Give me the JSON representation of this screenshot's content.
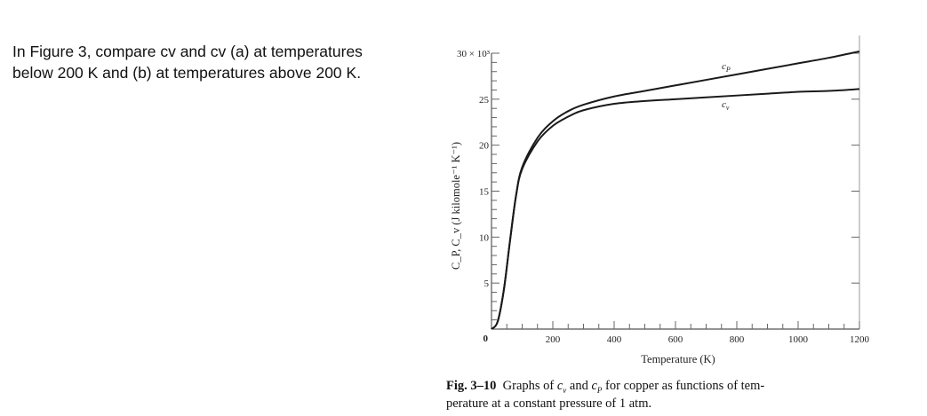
{
  "question": {
    "line1": "In Figure 3, compare cv and cv (a) at temperatures",
    "line2": "below 200 K and (b) at temperatures above 200 K."
  },
  "caption": {
    "label": "Fig. 3–10",
    "line1": "Graphs of c_v and c_P for copper as functions of tem-",
    "line2": "perature at a constant pressure of 1 atm."
  },
  "chart_data": {
    "type": "line",
    "title": "",
    "xlabel": "Temperature (K)",
    "ylabel": "C_P, C_v (J kilomole⁻¹ K⁻¹)",
    "xlim": [
      0,
      1200
    ],
    "ylim": [
      0,
      30000
    ],
    "x_ticks": [
      "0",
      "200",
      "400",
      "600",
      "800",
      "1000",
      "1200"
    ],
    "y_ticks": [
      "0",
      "5",
      "10",
      "15",
      "20",
      "25",
      "30 × 10³"
    ],
    "y_multiplier": "× 10³",
    "grid": false,
    "legend": "inline labels: c_P (upper curve), c_v (lower curve)",
    "series": [
      {
        "name": "c_P",
        "x": [
          0,
          20,
          40,
          60,
          80,
          100,
          150,
          200,
          250,
          300,
          400,
          500,
          600,
          700,
          800,
          900,
          1000,
          1100,
          1200
        ],
        "values": [
          0,
          800,
          4200,
          9500,
          14500,
          17600,
          20800,
          22600,
          23700,
          24400,
          25300,
          25900,
          26500,
          27100,
          27700,
          28300,
          28900,
          29500,
          30200
        ]
      },
      {
        "name": "c_v",
        "x": [
          0,
          20,
          40,
          60,
          80,
          100,
          150,
          200,
          250,
          300,
          400,
          500,
          600,
          700,
          800,
          900,
          1000,
          1100,
          1200
        ],
        "values": [
          0,
          800,
          4200,
          9500,
          14500,
          17400,
          20400,
          22100,
          23100,
          23800,
          24500,
          24800,
          25000,
          25200,
          25400,
          25600,
          25800,
          25900,
          26100
        ]
      }
    ],
    "annotations": [
      "c_P",
      "c_v"
    ]
  }
}
